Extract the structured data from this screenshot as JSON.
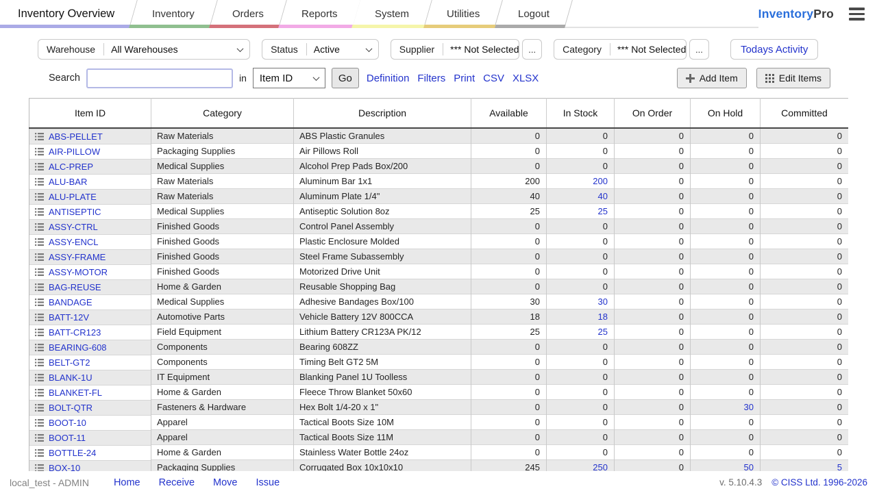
{
  "brand": {
    "primary": "Inventory",
    "secondary": "Pro"
  },
  "nav_tabs": [
    {
      "label": "Inventory Overview",
      "active": true,
      "underline_color": "#aaaae6"
    },
    {
      "label": "Inventory",
      "active": false,
      "underline_color": "#8fbf8f"
    },
    {
      "label": "Orders",
      "active": false,
      "underline_color": "#d4717a"
    },
    {
      "label": "Reports",
      "active": false,
      "underline_color": "#f2aae6"
    },
    {
      "label": "System",
      "active": false,
      "underline_color": "#f5f5aa"
    },
    {
      "label": "Utilities",
      "active": false,
      "underline_color": "#e6cc7a"
    },
    {
      "label": "Logout",
      "active": false,
      "underline_color": "#aaaaaa"
    }
  ],
  "filters": {
    "warehouse": {
      "label": "Warehouse",
      "value": "All Warehouses"
    },
    "status": {
      "label": "Status",
      "value": "Active"
    },
    "supplier": {
      "label": "Supplier",
      "value": "*** Not Selected",
      "browse_label": "..."
    },
    "category": {
      "label": "Category",
      "value": "*** Not Selected",
      "browse_label": "..."
    },
    "todays_activity_label": "Todays Activity"
  },
  "search": {
    "label": "Search",
    "input_value": "",
    "in_label": "in",
    "field_selected": "Item ID",
    "go_label": "Go",
    "action_links": [
      "Definition",
      "Filters",
      "Print",
      "CSV",
      "XLSX"
    ],
    "add_item_label": "Add Item",
    "edit_items_label": "Edit Items"
  },
  "table": {
    "columns": [
      "Item ID",
      "Category",
      "Description",
      "Available",
      "In Stock",
      "On Order",
      "On Hold",
      "Committed"
    ],
    "rows": [
      {
        "item_id": "ABS-PELLET",
        "category": "Raw Materials",
        "description": "ABS Plastic Granules",
        "available": 0,
        "in_stock": 0,
        "on_order": 0,
        "on_hold": 0,
        "committed": 0
      },
      {
        "item_id": "AIR-PILLOW",
        "category": "Packaging Supplies",
        "description": "Air Pillows Roll",
        "available": 0,
        "in_stock": 0,
        "on_order": 0,
        "on_hold": 0,
        "committed": 0
      },
      {
        "item_id": "ALC-PREP",
        "category": "Medical Supplies",
        "description": "Alcohol Prep Pads Box/200",
        "available": 0,
        "in_stock": 0,
        "on_order": 0,
        "on_hold": 0,
        "committed": 0
      },
      {
        "item_id": "ALU-BAR",
        "category": "Raw Materials",
        "description": "Aluminum Bar 1x1",
        "available": 200,
        "in_stock": 200,
        "on_order": 0,
        "on_hold": 0,
        "committed": 0
      },
      {
        "item_id": "ALU-PLATE",
        "category": "Raw Materials",
        "description": "Aluminum Plate 1/4\"",
        "available": 40,
        "in_stock": 40,
        "on_order": 0,
        "on_hold": 0,
        "committed": 0
      },
      {
        "item_id": "ANTISEPTIC",
        "category": "Medical Supplies",
        "description": "Antiseptic Solution 8oz",
        "available": 25,
        "in_stock": 25,
        "on_order": 0,
        "on_hold": 0,
        "committed": 0
      },
      {
        "item_id": "ASSY-CTRL",
        "category": "Finished Goods",
        "description": "Control Panel Assembly",
        "available": 0,
        "in_stock": 0,
        "on_order": 0,
        "on_hold": 0,
        "committed": 0
      },
      {
        "item_id": "ASSY-ENCL",
        "category": "Finished Goods",
        "description": "Plastic Enclosure Molded",
        "available": 0,
        "in_stock": 0,
        "on_order": 0,
        "on_hold": 0,
        "committed": 0
      },
      {
        "item_id": "ASSY-FRAME",
        "category": "Finished Goods",
        "description": "Steel Frame Subassembly",
        "available": 0,
        "in_stock": 0,
        "on_order": 0,
        "on_hold": 0,
        "committed": 0
      },
      {
        "item_id": "ASSY-MOTOR",
        "category": "Finished Goods",
        "description": "Motorized Drive Unit",
        "available": 0,
        "in_stock": 0,
        "on_order": 0,
        "on_hold": 0,
        "committed": 0
      },
      {
        "item_id": "BAG-REUSE",
        "category": "Home & Garden",
        "description": "Reusable Shopping Bag",
        "available": 0,
        "in_stock": 0,
        "on_order": 0,
        "on_hold": 0,
        "committed": 0
      },
      {
        "item_id": "BANDAGE",
        "category": "Medical Supplies",
        "description": "Adhesive Bandages Box/100",
        "available": 30,
        "in_stock": 30,
        "on_order": 0,
        "on_hold": 0,
        "committed": 0
      },
      {
        "item_id": "BATT-12V",
        "category": "Automotive Parts",
        "description": "Vehicle Battery 12V 800CCA",
        "available": 18,
        "in_stock": 18,
        "on_order": 0,
        "on_hold": 0,
        "committed": 0
      },
      {
        "item_id": "BATT-CR123",
        "category": "Field Equipment",
        "description": "Lithium Battery CR123A PK/12",
        "available": 25,
        "in_stock": 25,
        "on_order": 0,
        "on_hold": 0,
        "committed": 0
      },
      {
        "item_id": "BEARING-608",
        "category": "Components",
        "description": "Bearing 608ZZ",
        "available": 0,
        "in_stock": 0,
        "on_order": 0,
        "on_hold": 0,
        "committed": 0
      },
      {
        "item_id": "BELT-GT2",
        "category": "Components",
        "description": "Timing Belt GT2 5M",
        "available": 0,
        "in_stock": 0,
        "on_order": 0,
        "on_hold": 0,
        "committed": 0
      },
      {
        "item_id": "BLANK-1U",
        "category": "IT Equipment",
        "description": "Blanking Panel 1U Toolless",
        "available": 0,
        "in_stock": 0,
        "on_order": 0,
        "on_hold": 0,
        "committed": 0
      },
      {
        "item_id": "BLANKET-FL",
        "category": "Home & Garden",
        "description": "Fleece Throw Blanket 50x60",
        "available": 0,
        "in_stock": 0,
        "on_order": 0,
        "on_hold": 0,
        "committed": 0
      },
      {
        "item_id": "BOLT-QTR",
        "category": "Fasteners & Hardware",
        "description": "Hex Bolt 1/4-20 x 1\"",
        "available": 0,
        "in_stock": 0,
        "on_order": 0,
        "on_hold": 30,
        "committed": 0
      },
      {
        "item_id": "BOOT-10",
        "category": "Apparel",
        "description": "Tactical Boots Size 10M",
        "available": 0,
        "in_stock": 0,
        "on_order": 0,
        "on_hold": 0,
        "committed": 0
      },
      {
        "item_id": "BOOT-11",
        "category": "Apparel",
        "description": "Tactical Boots Size 11M",
        "available": 0,
        "in_stock": 0,
        "on_order": 0,
        "on_hold": 0,
        "committed": 0
      },
      {
        "item_id": "BOTTLE-24",
        "category": "Home & Garden",
        "description": "Stainless Water Bottle 24oz",
        "available": 0,
        "in_stock": 0,
        "on_order": 0,
        "on_hold": 0,
        "committed": 0
      },
      {
        "item_id": "BOX-10",
        "category": "Packaging Supplies",
        "description": "Corrugated Box 10x10x10",
        "available": 245,
        "in_stock": 250,
        "on_order": 0,
        "on_hold": 50,
        "committed": 5
      }
    ]
  },
  "footer": {
    "user": "local_test - ADMIN",
    "links": [
      "Home",
      "Receive",
      "Move",
      "Issue"
    ],
    "version": "v. 5.10.4.3",
    "copyright": "© CISS Ltd. 1996-2026"
  },
  "colors": {
    "link": "#2333cc",
    "brand_blue": "#2a6fdb"
  }
}
